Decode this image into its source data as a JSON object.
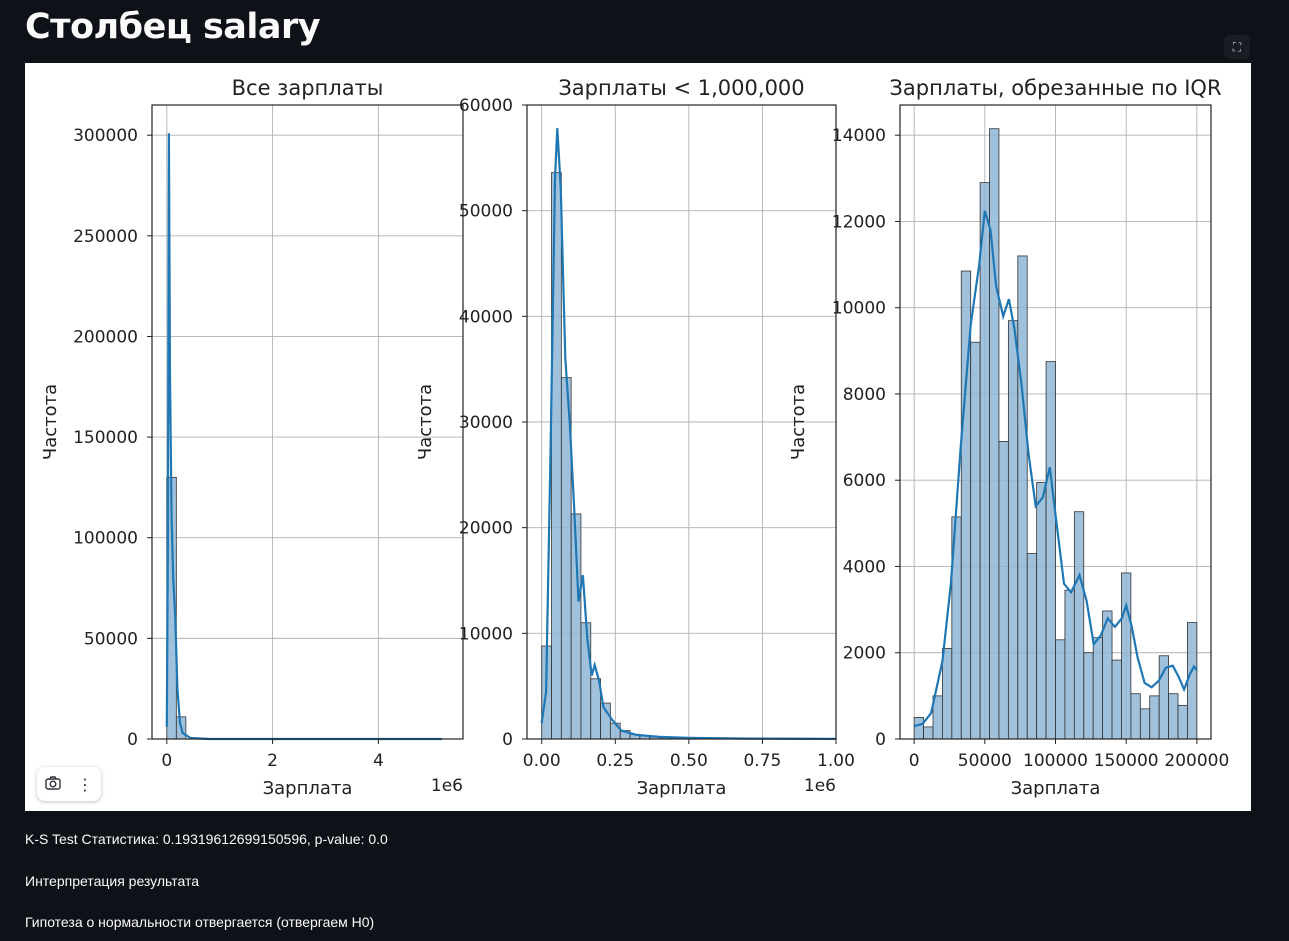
{
  "page": {
    "title": "Столбец salary",
    "fullscreen_icon": "fullscreen-icon",
    "toolbar": {
      "camera_icon": "camera-icon",
      "menu_icon": "more-vertical-icon"
    },
    "ks_test": "K-S Test Статистика: 0.19319612699150596, p-value: 0.0",
    "interpretation_label": "Интерпретация результата",
    "hypothesis_result": "Гипотеза о нормальности отвергается (отвергаем H0)"
  },
  "colors": {
    "bar": "#8fb6d6",
    "kde": "#1f77b4",
    "grid": "#b0b0b0",
    "background": "#0e1117"
  },
  "chart_data": [
    {
      "type": "bar",
      "title": "Все зарплаты",
      "xlabel": "Зарплата",
      "ylabel": "Частота",
      "offset_label": "1e6",
      "xlim": [
        -0.28,
        5.6
      ],
      "ylim": [
        0,
        315000
      ],
      "xticks": [
        0,
        2,
        4
      ],
      "xtick_labels": [
        "0",
        "2",
        "4"
      ],
      "yticks": [
        0,
        50000,
        100000,
        150000,
        200000,
        250000,
        300000
      ],
      "ytick_labels": [
        "0",
        "50000",
        "100000",
        "150000",
        "200000",
        "250000",
        "300000"
      ],
      "bin_edges": [
        0,
        0.18,
        0.36
      ],
      "values": [
        130000,
        11000
      ],
      "kde": [
        [
          0,
          6000
        ],
        [
          0.02,
          100000
        ],
        [
          0.04,
          301000
        ],
        [
          0.06,
          180000
        ],
        [
          0.09,
          110000
        ],
        [
          0.12,
          80000
        ],
        [
          0.16,
          60000
        ],
        [
          0.2,
          25000
        ],
        [
          0.25,
          8000
        ],
        [
          0.3,
          3000
        ],
        [
          0.45,
          500
        ],
        [
          0.8,
          0
        ],
        [
          5.2,
          0
        ]
      ],
      "grid": true
    },
    {
      "type": "bar",
      "title": "Зарплаты < 1,000,000",
      "xlabel": "Зарплата",
      "ylabel": "Частота",
      "offset_label": "1e6",
      "xlim": [
        -0.05,
        1.0
      ],
      "ylim": [
        0,
        60000
      ],
      "xticks": [
        0,
        0.25,
        0.5,
        0.75,
        1.0
      ],
      "xtick_labels": [
        "0.00",
        "0.25",
        "0.50",
        "0.75",
        "1.00"
      ],
      "yticks": [
        0,
        10000,
        20000,
        30000,
        40000,
        50000,
        60000
      ],
      "ytick_labels": [
        "0",
        "10000",
        "20000",
        "30000",
        "40000",
        "50000",
        "60000"
      ],
      "bin_edges": [
        0,
        0.0333,
        0.0667,
        0.1,
        0.1333,
        0.1667,
        0.2,
        0.2333,
        0.2667,
        0.3,
        0.3333,
        0.3667,
        0.4,
        0.4333,
        0.4667,
        0.5,
        0.5333,
        0.5667,
        0.6,
        0.6333,
        0.6667,
        0.7,
        0.7333,
        0.7667,
        0.8,
        0.8333,
        0.8667,
        0.9,
        0.9333,
        0.9667,
        1.0
      ],
      "values": [
        8800,
        53600,
        34200,
        21300,
        11000,
        5700,
        3400,
        1500,
        800,
        450,
        280,
        180,
        120,
        90,
        70,
        50,
        40,
        35,
        30,
        25,
        20,
        18,
        15,
        12,
        10,
        8,
        8,
        6,
        5,
        5
      ],
      "kde": [
        [
          0,
          1500
        ],
        [
          0.015,
          4500
        ],
        [
          0.03,
          27000
        ],
        [
          0.045,
          53000
        ],
        [
          0.053,
          57800
        ],
        [
          0.065,
          52000
        ],
        [
          0.08,
          36000
        ],
        [
          0.095,
          30000
        ],
        [
          0.11,
          22000
        ],
        [
          0.125,
          13000
        ],
        [
          0.14,
          15500
        ],
        [
          0.155,
          9500
        ],
        [
          0.17,
          6000
        ],
        [
          0.18,
          7000
        ],
        [
          0.195,
          5500
        ],
        [
          0.21,
          3000
        ],
        [
          0.24,
          1800
        ],
        [
          0.27,
          800
        ],
        [
          0.32,
          400
        ],
        [
          0.4,
          200
        ],
        [
          0.5,
          100
        ],
        [
          0.7,
          40
        ],
        [
          1.0,
          10
        ]
      ],
      "grid": true
    },
    {
      "type": "bar",
      "title": "Зарплаты, обрезанные по IQR",
      "xlabel": "Зарплата",
      "ylabel": "Частота",
      "offset_label": "",
      "xlim": [
        -10000,
        210000
      ],
      "ylim": [
        0,
        14700
      ],
      "xticks": [
        0,
        50000,
        100000,
        150000,
        200000
      ],
      "xtick_labels": [
        "0",
        "50000",
        "100000",
        "150000",
        "200000"
      ],
      "yticks": [
        0,
        2000,
        4000,
        6000,
        8000,
        10000,
        12000,
        14000
      ],
      "ytick_labels": [
        "0",
        "2000",
        "4000",
        "6000",
        "8000",
        "10000",
        "12000",
        "14000"
      ],
      "bin_edges": [
        0,
        6667,
        13333,
        20000,
        26667,
        33333,
        40000,
        46667,
        53333,
        60000,
        66667,
        73333,
        80000,
        86667,
        93333,
        100000,
        106667,
        113333,
        120000,
        126667,
        133333,
        140000,
        146667,
        153333,
        160000,
        166667,
        173333,
        180000,
        186667,
        193333,
        200000
      ],
      "values": [
        500,
        280,
        1000,
        2100,
        5150,
        10850,
        9200,
        12900,
        14150,
        6900,
        9700,
        11200,
        4300,
        5950,
        8750,
        2300,
        3450,
        5270,
        2000,
        2350,
        2970,
        1830,
        3850,
        1050,
        700,
        1000,
        1930,
        1050,
        780,
        2700
      ],
      "kde": [
        [
          0,
          300
        ],
        [
          6000,
          350
        ],
        [
          12000,
          600
        ],
        [
          20000,
          1800
        ],
        [
          26000,
          3600
        ],
        [
          33000,
          6800
        ],
        [
          40000,
          9600
        ],
        [
          46000,
          11000
        ],
        [
          50000,
          12250
        ],
        [
          54000,
          11800
        ],
        [
          58000,
          10500
        ],
        [
          63000,
          9800
        ],
        [
          67000,
          10200
        ],
        [
          71000,
          9500
        ],
        [
          76000,
          8200
        ],
        [
          81000,
          6600
        ],
        [
          86000,
          5400
        ],
        [
          91000,
          5600
        ],
        [
          96000,
          6300
        ],
        [
          100000,
          5200
        ],
        [
          106000,
          3600
        ],
        [
          111000,
          3400
        ],
        [
          117000,
          3800
        ],
        [
          122000,
          3200
        ],
        [
          127000,
          2200
        ],
        [
          132000,
          2400
        ],
        [
          137000,
          2800
        ],
        [
          142000,
          2600
        ],
        [
          147000,
          2800
        ],
        [
          150000,
          3100
        ],
        [
          154000,
          2600
        ],
        [
          158000,
          1900
        ],
        [
          163000,
          1300
        ],
        [
          168000,
          1200
        ],
        [
          173000,
          1350
        ],
        [
          178000,
          1650
        ],
        [
          183000,
          1700
        ],
        [
          187000,
          1450
        ],
        [
          191000,
          1150
        ],
        [
          195000,
          1500
        ],
        [
          198000,
          1680
        ],
        [
          200000,
          1600
        ]
      ],
      "grid": true
    }
  ]
}
